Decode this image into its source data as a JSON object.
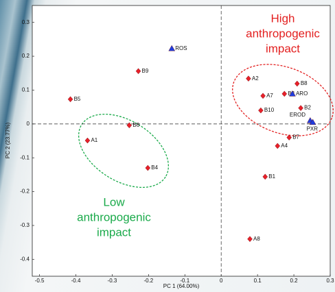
{
  "chart_data": {
    "type": "scatter",
    "xlabel": "PC 1 (64.00%)",
    "ylabel": "PC 2 (23.77%)",
    "xlim": [
      -0.52,
      0.3
    ],
    "ylim": [
      -0.45,
      0.35
    ],
    "xticks": [
      -0.5,
      -0.4,
      -0.3,
      -0.2,
      -0.1,
      0,
      0.1,
      0.2,
      0.3
    ],
    "yticks": [
      -0.4,
      -0.3,
      -0.2,
      -0.1,
      0,
      0.1,
      0.2,
      0.3
    ],
    "series": [
      {
        "marker": "diamond",
        "color": "#e8202a",
        "labels": [
          "B5",
          "B9",
          "A1",
          "B6",
          "B4",
          "A2",
          "A7",
          "B3",
          "B8",
          "B10",
          "B2",
          "B7",
          "A4",
          "B1",
          "A8"
        ],
        "x": [
          -0.415,
          -0.228,
          -0.368,
          -0.253,
          -0.202,
          0.075,
          0.115,
          0.174,
          0.209,
          0.109,
          0.219,
          0.187,
          0.155,
          0.121,
          0.079
        ],
        "y": [
          0.073,
          0.156,
          -0.049,
          -0.004,
          -0.13,
          0.134,
          0.083,
          0.089,
          0.119,
          0.04,
          0.047,
          -0.04,
          -0.065,
          -0.156,
          -0.34
        ]
      },
      {
        "marker": "triangle",
        "color": "#1f3ee0",
        "labels": [
          "ROS",
          "ARO",
          "EROD",
          "PXR"
        ],
        "x": [
          -0.136,
          0.196,
          0.245,
          0.252
        ],
        "y": [
          0.223,
          0.089,
          0.01,
          0.005
        ]
      }
    ],
    "annotations": [
      {
        "lines": [
          "High",
          "anthropogenic",
          "impact"
        ],
        "color": "#e32020"
      },
      {
        "lines": [
          "Low",
          "anthropogenic",
          "impact"
        ],
        "color": "#1aaa4a"
      }
    ]
  }
}
